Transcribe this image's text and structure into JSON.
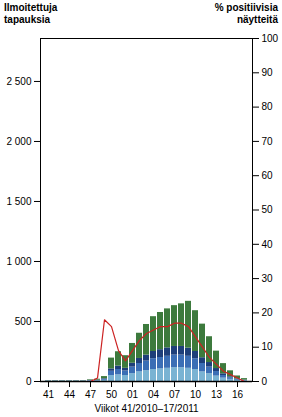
{
  "chart_data": {
    "type": "bar",
    "ylabel": "Ilmoitettuja\ntapauksia",
    "y2label": "% positiivisia\nnäytteitä",
    "xlabel": "Viikot 41/2010–17/2011",
    "categories": [
      "41",
      null,
      null,
      "44",
      null,
      null,
      "47",
      null,
      null,
      "50",
      null,
      null,
      "01",
      null,
      null,
      "04",
      null,
      null,
      "07",
      null,
      null,
      "10",
      null,
      null,
      "13",
      null,
      null,
      "16",
      null
    ],
    "series": [
      {
        "type": "bar",
        "color": "#7ab3d3",
        "values": [
          3,
          3,
          3,
          3,
          3,
          3,
          4,
          5,
          10,
          50,
          55,
          50,
          65,
          80,
          90,
          100,
          105,
          110,
          115,
          115,
          110,
          100,
          80,
          65,
          45,
          28,
          18,
          10,
          6
        ]
      },
      {
        "type": "bar",
        "color": "#3b6eb5",
        "values": [
          2,
          2,
          2,
          2,
          2,
          2,
          3,
          4,
          8,
          35,
          45,
          38,
          55,
          70,
          80,
          90,
          95,
          100,
          105,
          105,
          100,
          90,
          70,
          55,
          38,
          22,
          13,
          7,
          4
        ]
      },
      {
        "type": "bar",
        "color": "#1e3f7a",
        "values": [
          1,
          1,
          1,
          1,
          1,
          1,
          2,
          2,
          5,
          20,
          28,
          22,
          32,
          42,
          50,
          60,
          65,
          70,
          72,
          72,
          68,
          60,
          48,
          38,
          25,
          14,
          8,
          4,
          2
        ]
      },
      {
        "type": "bar",
        "color": "#3d7a3d",
        "values": [
          2,
          2,
          2,
          2,
          2,
          2,
          5,
          8,
          18,
          90,
          120,
          105,
          165,
          210,
          255,
          290,
          310,
          325,
          340,
          355,
          390,
          340,
          280,
          215,
          145,
          85,
          50,
          25,
          12
        ]
      },
      {
        "type": "line",
        "axis": "y2",
        "color": "#cc2222",
        "values": [
          0,
          0,
          0,
          0,
          0,
          0,
          0,
          1,
          18,
          16,
          9,
          6,
          9,
          12,
          14,
          15,
          16,
          16,
          17,
          17,
          16,
          13,
          10,
          7,
          5,
          3,
          2,
          1,
          0
        ]
      }
    ],
    "stacked": true,
    "ylim": [
      0,
      2858
    ],
    "yticks": [
      0,
      500,
      {
        "value": 1000,
        "label": "1 000"
      },
      {
        "value": 1500,
        "label": "1 500"
      },
      {
        "value": 2000,
        "label": "2 000"
      },
      {
        "value": 2500,
        "label": "2 500"
      }
    ],
    "y2lim": [
      0,
      100
    ],
    "y2ticks": [
      0,
      10,
      20,
      30,
      40,
      50,
      60,
      70,
      80,
      90,
      100
    ]
  }
}
